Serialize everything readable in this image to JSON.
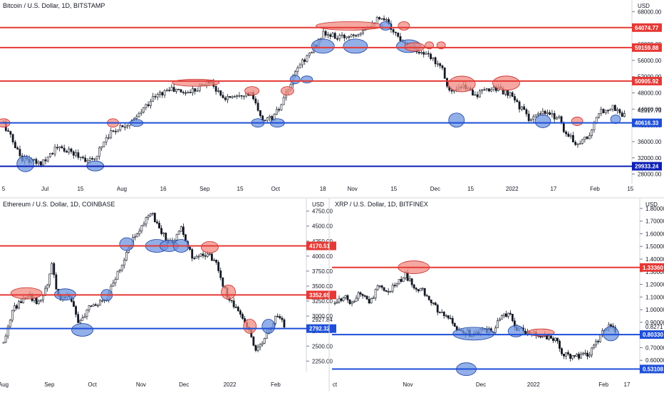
{
  "colors": {
    "up": "#131722",
    "down": "#131722",
    "red_line": "#e53935",
    "blue_line": "#1e4fd8",
    "dark_blue_line": "#0d1fb5",
    "red_highlight": "#f28b82",
    "blue_highlight": "#6d94e0",
    "text": "#131722",
    "axis_border": "#d1d4dc"
  },
  "chart_data": [
    {
      "id": "btc",
      "type": "candlestick",
      "title": "Bitcoin / U.S. Dollar, 1D, BITSTAMP",
      "currency": "USD",
      "ylim": [
        26000,
        70000
      ],
      "y_ticks": [
        28000,
        32000,
        36000,
        40000,
        44000,
        48000,
        52000,
        56000,
        60000,
        64000,
        68000
      ],
      "y_tick_labels": [
        "28000.00",
        "32000.00",
        "36000.00",
        "40000.00",
        "44000.00",
        "48000.00",
        "52000.00",
        "56000.00",
        "60000.00",
        "64000.00",
        "68000.00"
      ],
      "x_ticks": [
        {
          "label": "5",
          "x": 0
        },
        {
          "label": "Jul",
          "x": 0.07
        },
        {
          "label": "15",
          "x": 0.13
        },
        {
          "label": "Aug",
          "x": 0.2
        },
        {
          "label": "16",
          "x": 0.27
        },
        {
          "label": "Sep",
          "x": 0.34
        },
        {
          "label": "15",
          "x": 0.4
        },
        {
          "label": "Oct",
          "x": 0.46
        },
        {
          "label": "18",
          "x": 0.54
        },
        {
          "label": "Nov",
          "x": 0.59
        },
        {
          "label": "15",
          "x": 0.66
        },
        {
          "label": "Dec",
          "x": 0.73
        },
        {
          "label": "15",
          "x": 0.79
        },
        {
          "label": "2022",
          "x": 0.86
        },
        {
          "label": "17",
          "x": 0.93
        },
        {
          "label": "Feb",
          "x": 1.0
        },
        {
          "label": "15",
          "x": 1.06
        }
      ],
      "anchors": [
        [
          0,
          40500
        ],
        [
          0.03,
          32000
        ],
        [
          0.06,
          30500
        ],
        [
          0.09,
          34500
        ],
        [
          0.12,
          33000
        ],
        [
          0.15,
          31000
        ],
        [
          0.175,
          37500
        ],
        [
          0.2,
          40000
        ],
        [
          0.22,
          41000
        ],
        [
          0.25,
          46500
        ],
        [
          0.28,
          49000
        ],
        [
          0.31,
          48000
        ],
        [
          0.35,
          51000
        ],
        [
          0.37,
          46500
        ],
        [
          0.4,
          48000
        ],
        [
          0.42,
          47500
        ],
        [
          0.435,
          41500
        ],
        [
          0.455,
          41800
        ],
        [
          0.47,
          45000
        ],
        [
          0.5,
          55000
        ],
        [
          0.52,
          58000
        ],
        [
          0.54,
          62500
        ],
        [
          0.57,
          61500
        ],
        [
          0.6,
          63000
        ],
        [
          0.63,
          66000
        ],
        [
          0.65,
          65500
        ],
        [
          0.665,
          62000
        ],
        [
          0.7,
          58500
        ],
        [
          0.74,
          55000
        ],
        [
          0.755,
          48000
        ],
        [
          0.78,
          49500
        ],
        [
          0.8,
          47500
        ],
        [
          0.83,
          49500
        ],
        [
          0.86,
          47000
        ],
        [
          0.89,
          41500
        ],
        [
          0.9,
          42000
        ],
        [
          0.91,
          43000
        ],
        [
          0.94,
          42000
        ],
        [
          0.95,
          38000
        ],
        [
          0.97,
          35500
        ],
        [
          0.99,
          37500
        ],
        [
          1.01,
          43500
        ],
        [
          1.03,
          44500
        ],
        [
          1.05,
          42300
        ]
      ],
      "current_value": "42317.73",
      "levels": [
        {
          "value": 64074.77,
          "label": "64074.77",
          "color": "red"
        },
        {
          "value": 59159.88,
          "label": "59159.88",
          "color": "red"
        },
        {
          "value": 50905.92,
          "label": "50905.92",
          "color": "red"
        },
        {
          "value": 40616.33,
          "label": "40616.33",
          "color": "blue"
        },
        {
          "value": 29933.24,
          "label": "29933.24",
          "color": "darkblue"
        }
      ],
      "highlights": [
        {
          "x": 0.0,
          "y": 40600,
          "rx": 9,
          "ry": 6,
          "color": "red"
        },
        {
          "x": 0.037,
          "y": 30500,
          "rx": 12,
          "ry": 11,
          "color": "blue"
        },
        {
          "x": 0.155,
          "y": 30000,
          "rx": 12,
          "ry": 7,
          "color": "blue"
        },
        {
          "x": 0.185,
          "y": 40600,
          "rx": 8,
          "ry": 6,
          "color": "red"
        },
        {
          "x": 0.225,
          "y": 40600,
          "rx": 9,
          "ry": 5,
          "color": "blue"
        },
        {
          "x": 0.325,
          "y": 50500,
          "rx": 33,
          "ry": 5,
          "color": "red"
        },
        {
          "x": 0.42,
          "y": 48500,
          "rx": 10,
          "ry": 6,
          "color": "red"
        },
        {
          "x": 0.43,
          "y": 40600,
          "rx": 9,
          "ry": 6,
          "color": "blue"
        },
        {
          "x": 0.463,
          "y": 40600,
          "rx": 10,
          "ry": 6,
          "color": "blue"
        },
        {
          "x": 0.48,
          "y": 48500,
          "rx": 9,
          "ry": 6,
          "color": "red"
        },
        {
          "x": 0.493,
          "y": 51300,
          "rx": 7,
          "ry": 6,
          "color": "blue"
        },
        {
          "x": 0.513,
          "y": 51300,
          "rx": 8,
          "ry": 5,
          "color": "blue"
        },
        {
          "x": 0.54,
          "y": 59500,
          "rx": 16,
          "ry": 10,
          "color": "blue"
        },
        {
          "x": 0.585,
          "y": 64500,
          "rx": 47,
          "ry": 6,
          "color": "red"
        },
        {
          "x": 0.595,
          "y": 59500,
          "rx": 17,
          "ry": 10,
          "color": "blue"
        },
        {
          "x": 0.646,
          "y": 64500,
          "rx": 8,
          "ry": 6,
          "color": "blue"
        },
        {
          "x": 0.677,
          "y": 64500,
          "rx": 8,
          "ry": 6,
          "color": "red"
        },
        {
          "x": 0.685,
          "y": 59500,
          "rx": 17,
          "ry": 9,
          "color": "blue"
        },
        {
          "x": 0.695,
          "y": 59300,
          "rx": 14,
          "ry": 6,
          "color": "red"
        },
        {
          "x": 0.72,
          "y": 59700,
          "rx": 6,
          "ry": 5,
          "color": "red"
        },
        {
          "x": 0.74,
          "y": 59700,
          "rx": 6,
          "ry": 5,
          "color": "red"
        },
        {
          "x": 0.766,
          "y": 41300,
          "rx": 11,
          "ry": 10,
          "color": "blue"
        },
        {
          "x": 0.775,
          "y": 50200,
          "rx": 19,
          "ry": 11,
          "color": "red"
        },
        {
          "x": 0.85,
          "y": 50400,
          "rx": 19,
          "ry": 10,
          "color": "red"
        },
        {
          "x": 0.912,
          "y": 41000,
          "rx": 11,
          "ry": 9,
          "color": "blue"
        },
        {
          "x": 0.97,
          "y": 41000,
          "rx": 8,
          "ry": 6,
          "color": "red"
        },
        {
          "x": 1.035,
          "y": 41500,
          "rx": 7,
          "ry": 6,
          "color": "blue"
        }
      ]
    },
    {
      "id": "eth",
      "type": "candlestick",
      "title": "Ethereum / U.S. Dollar, 1D, COINBASE",
      "currency": "USD",
      "ylim": [
        2100,
        4900
      ],
      "y_ticks": [
        2250,
        2500,
        2750,
        3000,
        3250,
        3500,
        3750,
        4000,
        4250,
        4500,
        4750
      ],
      "y_tick_labels": [
        "2250.00",
        "2500.00",
        "2750.00",
        "3000.00",
        "3250.00",
        "3500.00",
        "3750.00",
        "4000.00",
        "4250.00",
        "4500.00",
        "4750.00"
      ],
      "x_ticks": [
        {
          "label": "Aug",
          "x": 0
        },
        {
          "label": "Sep",
          "x": 0.16
        },
        {
          "label": "Oct",
          "x": 0.31
        },
        {
          "label": "Nov",
          "x": 0.48
        },
        {
          "label": "Dec",
          "x": 0.63
        },
        {
          "label": "2022",
          "x": 0.79
        },
        {
          "label": "Feb",
          "x": 0.95
        }
      ],
      "anchors": [
        [
          0,
          2550
        ],
        [
          0.03,
          3100
        ],
        [
          0.06,
          3250
        ],
        [
          0.09,
          3350
        ],
        [
          0.12,
          3200
        ],
        [
          0.15,
          3500
        ],
        [
          0.17,
          3900
        ],
        [
          0.19,
          3300
        ],
        [
          0.21,
          3300
        ],
        [
          0.23,
          3350
        ],
        [
          0.26,
          2900
        ],
        [
          0.28,
          2950
        ],
        [
          0.3,
          3200
        ],
        [
          0.33,
          3200
        ],
        [
          0.36,
          3300
        ],
        [
          0.39,
          3650
        ],
        [
          0.42,
          3900
        ],
        [
          0.45,
          4300
        ],
        [
          0.48,
          4500
        ],
        [
          0.5,
          4650
        ],
        [
          0.52,
          4700
        ],
        [
          0.55,
          4400
        ],
        [
          0.58,
          4200
        ],
        [
          0.6,
          4300
        ],
        [
          0.62,
          4500
        ],
        [
          0.64,
          4150
        ],
        [
          0.66,
          4000
        ],
        [
          0.69,
          4050
        ],
        [
          0.72,
          4000
        ],
        [
          0.75,
          3800
        ],
        [
          0.77,
          3450
        ],
        [
          0.8,
          3200
        ],
        [
          0.83,
          3050
        ],
        [
          0.86,
          2700
        ],
        [
          0.88,
          2400
        ],
        [
          0.9,
          2550
        ],
        [
          0.92,
          2750
        ],
        [
          0.94,
          2900
        ],
        [
          0.96,
          3050
        ],
        [
          0.98,
          2850
        ]
      ],
      "current_value": "2927.84",
      "levels": [
        {
          "value": 4170.51,
          "label": "4170.51",
          "color": "red"
        },
        {
          "value": 3352.69,
          "label": "3352.69",
          "color": "red"
        },
        {
          "value": 2792.32,
          "label": "2792.32",
          "color": "blue"
        }
      ],
      "highlights": [
        {
          "x": 0.08,
          "y": 3380,
          "rx": 22,
          "ry": 8,
          "color": "red"
        },
        {
          "x": 0.215,
          "y": 3360,
          "rx": 15,
          "ry": 8,
          "color": "blue"
        },
        {
          "x": 0.275,
          "y": 2770,
          "rx": 15,
          "ry": 9,
          "color": "blue"
        },
        {
          "x": 0.36,
          "y": 3350,
          "rx": 8,
          "ry": 8,
          "color": "blue"
        },
        {
          "x": 0.43,
          "y": 4200,
          "rx": 10,
          "ry": 9,
          "color": "blue"
        },
        {
          "x": 0.535,
          "y": 4170,
          "rx": 16,
          "ry": 9,
          "color": "blue"
        },
        {
          "x": 0.578,
          "y": 4170,
          "rx": 13,
          "ry": 8,
          "color": "blue"
        },
        {
          "x": 0.62,
          "y": 4170,
          "rx": 11,
          "ry": 9,
          "color": "blue"
        },
        {
          "x": 0.72,
          "y": 4150,
          "rx": 12,
          "ry": 8,
          "color": "red"
        },
        {
          "x": 0.785,
          "y": 3400,
          "rx": 10,
          "ry": 10,
          "color": "red"
        },
        {
          "x": 0.86,
          "y": 2830,
          "rx": 9,
          "ry": 10,
          "color": "red"
        },
        {
          "x": 0.925,
          "y": 2830,
          "rx": 9,
          "ry": 10,
          "color": "blue"
        }
      ]
    },
    {
      "id": "xrp",
      "type": "candlestick",
      "title": "XRP / U.S. Dollar, 1D, BITFINEX",
      "currency": "USD",
      "ylim": [
        0.5,
        1.85
      ],
      "y_ticks": [
        0.6,
        0.7,
        0.8,
        0.9,
        1.0,
        1.1,
        1.2,
        1.3,
        1.4,
        1.5,
        1.6,
        1.7,
        1.8
      ],
      "y_tick_labels": [
        "0.60000",
        "0.70000",
        "0.80000",
        "0.90000",
        "1.00000",
        "1.10000",
        "1.20000",
        "1.30000",
        "1.40000",
        "1.50000",
        "1.60000",
        "1.70000",
        "1.80000"
      ],
      "x_ticks": [
        {
          "label": "ct",
          "x": 0
        },
        {
          "label": "Nov",
          "x": 0.25
        },
        {
          "label": "Dec",
          "x": 0.5
        },
        {
          "label": "2022",
          "x": 0.68
        },
        {
          "label": "Feb",
          "x": 0.92
        },
        {
          "label": "17",
          "x": 1.0
        }
      ],
      "anchors": [
        [
          0,
          1.05
        ],
        [
          0.03,
          1.1
        ],
        [
          0.06,
          1.05
        ],
        [
          0.09,
          1.15
        ],
        [
          0.12,
          1.05
        ],
        [
          0.15,
          1.2
        ],
        [
          0.18,
          1.13
        ],
        [
          0.21,
          1.2
        ],
        [
          0.24,
          1.28
        ],
        [
          0.27,
          1.18
        ],
        [
          0.3,
          1.15
        ],
        [
          0.33,
          1.05
        ],
        [
          0.36,
          0.98
        ],
        [
          0.39,
          0.93
        ],
        [
          0.42,
          0.85
        ],
        [
          0.45,
          0.82
        ],
        [
          0.48,
          0.8
        ],
        [
          0.51,
          0.85
        ],
        [
          0.54,
          0.82
        ],
        [
          0.57,
          0.97
        ],
        [
          0.6,
          0.95
        ],
        [
          0.62,
          0.85
        ],
        [
          0.64,
          0.83
        ],
        [
          0.67,
          0.82
        ],
        [
          0.7,
          0.8
        ],
        [
          0.73,
          0.78
        ],
        [
          0.76,
          0.77
        ],
        [
          0.78,
          0.65
        ],
        [
          0.81,
          0.62
        ],
        [
          0.84,
          0.63
        ],
        [
          0.87,
          0.65
        ],
        [
          0.9,
          0.75
        ],
        [
          0.92,
          0.85
        ],
        [
          0.94,
          0.88
        ],
        [
          0.96,
          0.82
        ]
      ],
      "current_value": "0.82717",
      "levels": [
        {
          "value": 1.3336,
          "label": "1.33360",
          "color": "red"
        },
        {
          "value": 0.8033,
          "label": "0.80330",
          "color": "blue"
        },
        {
          "value": 0.53108,
          "label": "0.53108",
          "color": "blue"
        }
      ],
      "highlights": [
        {
          "x": 0.27,
          "y": 1.335,
          "rx": 22,
          "ry": 9,
          "color": "red"
        },
        {
          "x": 0.475,
          "y": 0.81,
          "rx": 29,
          "ry": 9,
          "color": "blue"
        },
        {
          "x": 0.45,
          "y": 0.53,
          "rx": 14,
          "ry": 9,
          "color": "blue"
        },
        {
          "x": 0.62,
          "y": 0.83,
          "rx": 11,
          "ry": 8,
          "color": "blue"
        },
        {
          "x": 0.705,
          "y": 0.82,
          "rx": 19,
          "ry": 5,
          "color": "red"
        },
        {
          "x": 0.945,
          "y": 0.81,
          "rx": 11,
          "ry": 10,
          "color": "blue"
        }
      ]
    }
  ]
}
